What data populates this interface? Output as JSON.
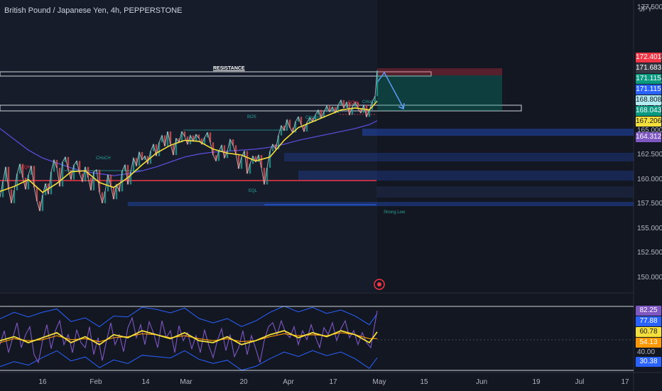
{
  "header": {
    "title": "British Pound / Japanese Yen, 4h, PEPPERSTONE",
    "currency": "JPY"
  },
  "colors": {
    "bg": "#131722",
    "price": "#c9ccd4",
    "ma_fast": "#f5e03b",
    "ma_slow": "#5b4bd6",
    "zone_blue": "#2962ff",
    "support_red": "#f23645",
    "rsi": "#7e57c2",
    "rsi_ma": "#f5e03b",
    "rsi_ma2": "#ff9800",
    "bands": "#2962ff",
    "bos": "#26a69a",
    "eqh": "#f23645"
  },
  "chart_data": [
    {
      "type": "line",
      "title": "British Pound / Japanese Yen, 4h, PEPPERSTONE",
      "ylabel": "JPY",
      "ylim": [
        148.6,
        178.3
      ],
      "x_ticks": [
        "16",
        "Feb",
        "14",
        "Mar",
        "20",
        "Apr",
        "17",
        "May",
        "15",
        "Jun",
        "19",
        "Jul",
        "17"
      ],
      "y_ticks": [
        "177.500",
        "172.500",
        "170.000",
        "167.500",
        "165.000",
        "162.500",
        "160.000",
        "157.500",
        "155.000",
        "152.500",
        "150.000"
      ],
      "price_series": [
        [
          0,
          158.2
        ],
        [
          4,
          159.8
        ],
        [
          8,
          161.3
        ],
        [
          12,
          159.0
        ],
        [
          16,
          157.6
        ],
        [
          20,
          158.9
        ],
        [
          24,
          160.6
        ],
        [
          28,
          161.6
        ],
        [
          32,
          160.2
        ],
        [
          36,
          159.0
        ],
        [
          40,
          160.5
        ],
        [
          44,
          161.4
        ],
        [
          48,
          159.2
        ],
        [
          52,
          157.8
        ],
        [
          56,
          156.8
        ],
        [
          60,
          158.4
        ],
        [
          64,
          159.6
        ],
        [
          68,
          158.5
        ],
        [
          72,
          160.8
        ],
        [
          76,
          162.0
        ],
        [
          80,
          161.2
        ],
        [
          84,
          159.3
        ],
        [
          88,
          161.8
        ],
        [
          92,
          162.3
        ],
        [
          96,
          161.0
        ],
        [
          100,
          160.0
        ],
        [
          104,
          161.5
        ],
        [
          108,
          161.9
        ],
        [
          112,
          160.6
        ],
        [
          116,
          159.8
        ],
        [
          120,
          161.3
        ],
        [
          124,
          160.2
        ],
        [
          128,
          158.9
        ],
        [
          132,
          160.8
        ],
        [
          136,
          161.0
        ],
        [
          140,
          158.7
        ],
        [
          144,
          157.6
        ],
        [
          148,
          158.8
        ],
        [
          152,
          160.5
        ],
        [
          156,
          159.3
        ],
        [
          160,
          158.0
        ],
        [
          164,
          159.5
        ],
        [
          168,
          158.8
        ],
        [
          172,
          160.9
        ],
        [
          176,
          161.5
        ],
        [
          180,
          159.5
        ],
        [
          184,
          160.8
        ],
        [
          188,
          162.2
        ],
        [
          192,
          161.4
        ],
        [
          196,
          162.8
        ],
        [
          200,
          162.0
        ],
        [
          204,
          162.4
        ],
        [
          208,
          161.6
        ],
        [
          212,
          162.9
        ],
        [
          216,
          163.6
        ],
        [
          220,
          162.4
        ],
        [
          224,
          163.8
        ],
        [
          228,
          164.5
        ],
        [
          232,
          163.4
        ],
        [
          236,
          164.9
        ],
        [
          240,
          163.6
        ],
        [
          244,
          162.5
        ],
        [
          248,
          164.2
        ],
        [
          252,
          163.8
        ],
        [
          256,
          164.9
        ],
        [
          260,
          164.4
        ],
        [
          264,
          163.6
        ],
        [
          268,
          164.5
        ],
        [
          272,
          163.9
        ],
        [
          276,
          164.6
        ],
        [
          280,
          164.2
        ],
        [
          284,
          163.6
        ],
        [
          288,
          164.3
        ],
        [
          292,
          164.8
        ],
        [
          296,
          163.8
        ],
        [
          300,
          162.5
        ],
        [
          304,
          161.9
        ],
        [
          308,
          162.9
        ],
        [
          312,
          163.5
        ],
        [
          316,
          162.2
        ],
        [
          320,
          162.9
        ],
        [
          324,
          164.1
        ],
        [
          328,
          163.5
        ],
        [
          332,
          162.6
        ],
        [
          336,
          161.1
        ],
        [
          340,
          162.3
        ],
        [
          344,
          162.9
        ],
        [
          348,
          160.6
        ],
        [
          352,
          161.6
        ],
        [
          356,
          162.4
        ],
        [
          360,
          161.8
        ],
        [
          364,
          162.5
        ],
        [
          368,
          161.2
        ],
        [
          372,
          159.5
        ],
        [
          376,
          161.2
        ],
        [
          380,
          162.9
        ],
        [
          384,
          163.6
        ],
        [
          388,
          163.1
        ],
        [
          392,
          164.5
        ],
        [
          396,
          165.5
        ],
        [
          400,
          165.0
        ],
        [
          404,
          166.1
        ],
        [
          408,
          165.3
        ],
        [
          412,
          164.8
        ],
        [
          416,
          165.9
        ],
        [
          420,
          166.4
        ],
        [
          424,
          165.6
        ],
        [
          428,
          164.9
        ],
        [
          432,
          165.8
        ],
        [
          436,
          166.3
        ],
        [
          440,
          165.9
        ],
        [
          444,
          166.6
        ],
        [
          448,
          167.1
        ],
        [
          452,
          166.3
        ],
        [
          456,
          166.9
        ],
        [
          460,
          167.5
        ],
        [
          464,
          166.9
        ],
        [
          468,
          167.4
        ],
        [
          472,
          166.8
        ],
        [
          476,
          167.6
        ],
        [
          480,
          168.1
        ],
        [
          484,
          167.3
        ],
        [
          488,
          167.9
        ],
        [
          492,
          166.6
        ],
        [
          496,
          167.4
        ],
        [
          500,
          167.9
        ],
        [
          504,
          167.2
        ],
        [
          508,
          166.8
        ],
        [
          512,
          167.6
        ],
        [
          516,
          166.4
        ],
        [
          520,
          167.1
        ],
        [
          524,
          167.9
        ],
        [
          528,
          168.5
        ],
        [
          531,
          171.1
        ]
      ],
      "ma_fast": [
        [
          0,
          158.8
        ],
        [
          20,
          159.3
        ],
        [
          40,
          160.0
        ],
        [
          60,
          158.7
        ],
        [
          80,
          159.6
        ],
        [
          100,
          160.8
        ],
        [
          120,
          160.9
        ],
        [
          140,
          159.7
        ],
        [
          160,
          159.2
        ],
        [
          180,
          160.2
        ],
        [
          200,
          161.5
        ],
        [
          220,
          162.7
        ],
        [
          240,
          163.5
        ],
        [
          260,
          164.0
        ],
        [
          280,
          163.9
        ],
        [
          300,
          163.1
        ],
        [
          320,
          162.7
        ],
        [
          340,
          162.5
        ],
        [
          360,
          161.9
        ],
        [
          380,
          162.3
        ],
        [
          400,
          164.0
        ],
        [
          420,
          165.3
        ],
        [
          440,
          165.9
        ],
        [
          460,
          166.5
        ],
        [
          480,
          167.1
        ],
        [
          500,
          167.3
        ],
        [
          520,
          167.1
        ],
        [
          531,
          168.0
        ]
      ],
      "ma_slow": [
        [
          0,
          165.2
        ],
        [
          20,
          164.1
        ],
        [
          40,
          163.0
        ],
        [
          60,
          162.2
        ],
        [
          80,
          161.7
        ],
        [
          100,
          161.2
        ],
        [
          120,
          160.8
        ],
        [
          140,
          160.6
        ],
        [
          160,
          160.4
        ],
        [
          180,
          160.6
        ],
        [
          200,
          160.9
        ],
        [
          220,
          161.3
        ],
        [
          240,
          161.8
        ],
        [
          260,
          162.3
        ],
        [
          280,
          162.6
        ],
        [
          300,
          162.8
        ],
        [
          320,
          162.9
        ],
        [
          340,
          163.0
        ],
        [
          360,
          163.1
        ],
        [
          380,
          163.3
        ],
        [
          400,
          163.6
        ],
        [
          420,
          164.0
        ],
        [
          440,
          164.3
        ],
        [
          460,
          164.6
        ],
        [
          480,
          164.9
        ],
        [
          500,
          165.2
        ],
        [
          520,
          165.6
        ],
        [
          531,
          166.0
        ]
      ],
      "resistance_label": "RESISTANCE",
      "annotations": [
        "CHoCH",
        "BOS",
        "EQH",
        "EQL",
        "Strong Low"
      ],
      "price_badges": [
        {
          "text": "172.401",
          "color": "#f23645",
          "value": 172.401
        },
        {
          "text": "171.683",
          "color": "#363a45",
          "value": 171.683
        },
        {
          "text": "171.115",
          "color": "#089981",
          "value": 171.115
        },
        {
          "text": "171.115",
          "color": "#2962ff",
          "value": 171.115
        },
        {
          "text": "168.808",
          "color": "#b2ebf2",
          "value": 168.808
        },
        {
          "text": "168.043",
          "color": "#089981",
          "value": 168.043
        },
        {
          "text": "167.206",
          "color": "#f5e03b",
          "value": 167.206
        },
        {
          "text": "164.312",
          "color": "#7e57c2",
          "value": 164.312
        }
      ]
    },
    {
      "type": "line",
      "ylim": [
        20,
        100
      ],
      "y_ticks": [
        "40.00"
      ],
      "rsi_badges": [
        {
          "text": "82.25",
          "color": "#7e57c2",
          "value": 82.25
        },
        {
          "text": "77.88",
          "color": "#2962ff",
          "value": 77.88
        },
        {
          "text": "60.78",
          "color": "#f5e03b",
          "value": 60.78
        },
        {
          "text": "54.13",
          "color": "#ff9800",
          "value": 54.13
        },
        {
          "text": "30.38",
          "color": "#2962ff",
          "value": 30.38
        }
      ],
      "rsi_series": [
        [
          0,
          48
        ],
        [
          6,
          62
        ],
        [
          12,
          40
        ],
        [
          18,
          55
        ],
        [
          24,
          70
        ],
        [
          30,
          45
        ],
        [
          36,
          58
        ],
        [
          42,
          66
        ],
        [
          48,
          38
        ],
        [
          54,
          30
        ],
        [
          60,
          52
        ],
        [
          66,
          68
        ],
        [
          72,
          44
        ],
        [
          78,
          62
        ],
        [
          84,
          72
        ],
        [
          90,
          48
        ],
        [
          96,
          58
        ],
        [
          102,
          40
        ],
        [
          108,
          63
        ],
        [
          114,
          50
        ],
        [
          120,
          45
        ],
        [
          126,
          66
        ],
        [
          132,
          38
        ],
        [
          138,
          55
        ],
        [
          144,
          32
        ],
        [
          150,
          52
        ],
        [
          156,
          70
        ],
        [
          162,
          48
        ],
        [
          168,
          58
        ],
        [
          174,
          41
        ],
        [
          180,
          65
        ],
        [
          186,
          75
        ],
        [
          192,
          55
        ],
        [
          198,
          68
        ],
        [
          204,
          48
        ],
        [
          210,
          71
        ],
        [
          216,
          60
        ],
        [
          222,
          45
        ],
        [
          228,
          72
        ],
        [
          234,
          55
        ],
        [
          240,
          62
        ],
        [
          246,
          40
        ],
        [
          252,
          67
        ],
        [
          258,
          52
        ],
        [
          264,
          60
        ],
        [
          270,
          44
        ],
        [
          276,
          57
        ],
        [
          282,
          40
        ],
        [
          288,
          63
        ],
        [
          294,
          47
        ],
        [
          300,
          35
        ],
        [
          306,
          52
        ],
        [
          312,
          64
        ],
        [
          318,
          42
        ],
        [
          324,
          58
        ],
        [
          330,
          36
        ],
        [
          336,
          45
        ],
        [
          342,
          62
        ],
        [
          348,
          38
        ],
        [
          354,
          57
        ],
        [
          360,
          44
        ],
        [
          366,
          30
        ],
        [
          372,
          52
        ],
        [
          378,
          66
        ],
        [
          384,
          70
        ],
        [
          390,
          58
        ],
        [
          396,
          72
        ],
        [
          402,
          60
        ],
        [
          408,
          55
        ],
        [
          414,
          66
        ],
        [
          420,
          48
        ],
        [
          426,
          62
        ],
        [
          432,
          53
        ],
        [
          438,
          68
        ],
        [
          444,
          56
        ],
        [
          450,
          45
        ],
        [
          456,
          65
        ],
        [
          462,
          58
        ],
        [
          468,
          70
        ],
        [
          474,
          52
        ],
        [
          480,
          64
        ],
        [
          486,
          72
        ],
        [
          492,
          55
        ],
        [
          498,
          62
        ],
        [
          504,
          48
        ],
        [
          510,
          60
        ],
        [
          516,
          50
        ],
        [
          522,
          45
        ],
        [
          528,
          70
        ],
        [
          531,
          82
        ]
      ],
      "rsi_ma": [
        [
          0,
          52
        ],
        [
          20,
          56
        ],
        [
          40,
          50
        ],
        [
          60,
          55
        ],
        [
          80,
          60
        ],
        [
          100,
          50
        ],
        [
          120,
          56
        ],
        [
          140,
          48
        ],
        [
          160,
          58
        ],
        [
          180,
          55
        ],
        [
          200,
          62
        ],
        [
          220,
          58
        ],
        [
          240,
          54
        ],
        [
          260,
          60
        ],
        [
          280,
          52
        ],
        [
          300,
          50
        ],
        [
          320,
          56
        ],
        [
          340,
          48
        ],
        [
          360,
          52
        ],
        [
          380,
          58
        ],
        [
          400,
          62
        ],
        [
          420,
          55
        ],
        [
          440,
          60
        ],
        [
          460,
          56
        ],
        [
          480,
          62
        ],
        [
          500,
          58
        ],
        [
          520,
          50
        ],
        [
          531,
          60.8
        ]
      ],
      "rsi_ma2": [
        [
          0,
          50
        ],
        [
          20,
          54
        ],
        [
          40,
          52
        ],
        [
          60,
          53
        ],
        [
          80,
          57
        ],
        [
          100,
          53
        ],
        [
          120,
          54
        ],
        [
          140,
          51
        ],
        [
          160,
          55
        ],
        [
          180,
          56
        ],
        [
          200,
          59
        ],
        [
          220,
          58
        ],
        [
          240,
          55
        ],
        [
          260,
          57
        ],
        [
          280,
          54
        ],
        [
          300,
          52
        ],
        [
          320,
          54
        ],
        [
          340,
          51
        ],
        [
          360,
          52
        ],
        [
          380,
          56
        ],
        [
          400,
          59
        ],
        [
          420,
          57
        ],
        [
          440,
          58
        ],
        [
          460,
          57
        ],
        [
          480,
          60
        ],
        [
          500,
          58
        ],
        [
          520,
          54
        ],
        [
          531,
          54.1
        ]
      ]
    }
  ]
}
